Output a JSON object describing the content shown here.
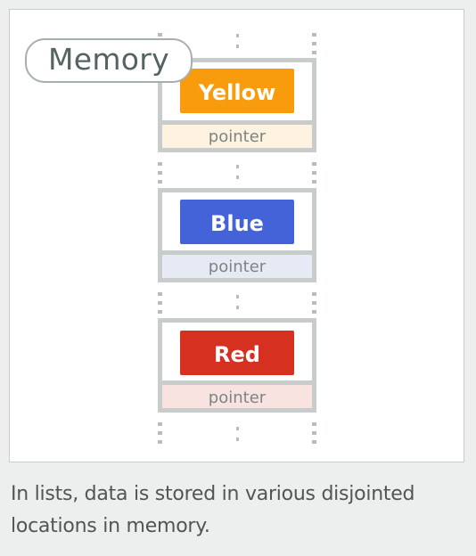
{
  "badge": {
    "label": "Memory"
  },
  "blocks": [
    {
      "value": "Yellow",
      "color": "#f89c0e",
      "pointer_label": "pointer",
      "pointer_bg": "#fdf3e0"
    },
    {
      "value": "Blue",
      "color": "#4463d8",
      "pointer_label": "pointer",
      "pointer_bg": "#e6eaf5"
    },
    {
      "value": "Red",
      "color": "#d63020",
      "pointer_label": "pointer",
      "pointer_bg": "#f8e3e1"
    }
  ],
  "colors": {
    "frame": "#c8cccb",
    "dots": "#b8bcbb",
    "pointer_text": "#7d8584",
    "value_text": "#ffffff"
  },
  "caption": "In lists, data is stored in various disjointed locations in memory."
}
